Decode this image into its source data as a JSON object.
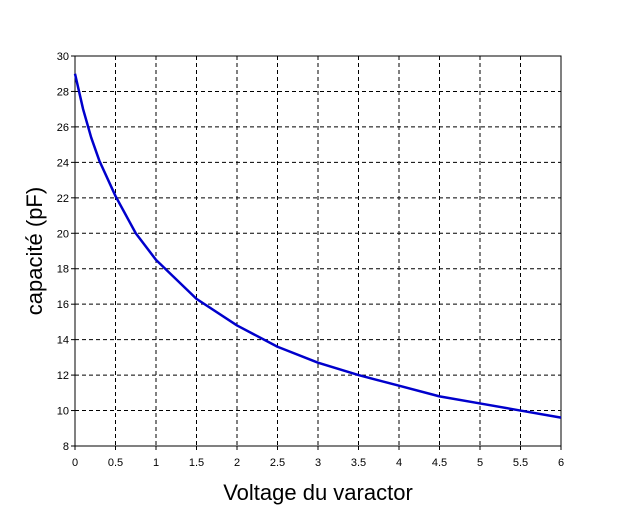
{
  "chart_data": {
    "type": "line",
    "x_label": "Voltage du varactor",
    "y_label": "capacité (pF)",
    "x": [
      0,
      0.1,
      0.2,
      0.3,
      0.5,
      0.75,
      1,
      1.5,
      2,
      2.5,
      3,
      3.5,
      4,
      4.5,
      5,
      5.5,
      6
    ],
    "series": [
      {
        "color": "#0000cc",
        "values": [
          29,
          27.0,
          25.4,
          24.1,
          22.1,
          20.0,
          18.5,
          16.3,
          14.8,
          13.6,
          12.7,
          12.0,
          11.4,
          10.8,
          10.4,
          10.0,
          9.6
        ]
      }
    ],
    "xlim": [
      0,
      6
    ],
    "ylim": [
      8,
      30
    ],
    "xticks": [
      0,
      0.5,
      1,
      1.5,
      2,
      2.5,
      3,
      3.5,
      4,
      4.5,
      5,
      5.5,
      6
    ],
    "yticks": [
      8,
      10,
      12,
      14,
      16,
      18,
      20,
      22,
      24,
      26,
      28,
      30
    ],
    "grid": true
  }
}
